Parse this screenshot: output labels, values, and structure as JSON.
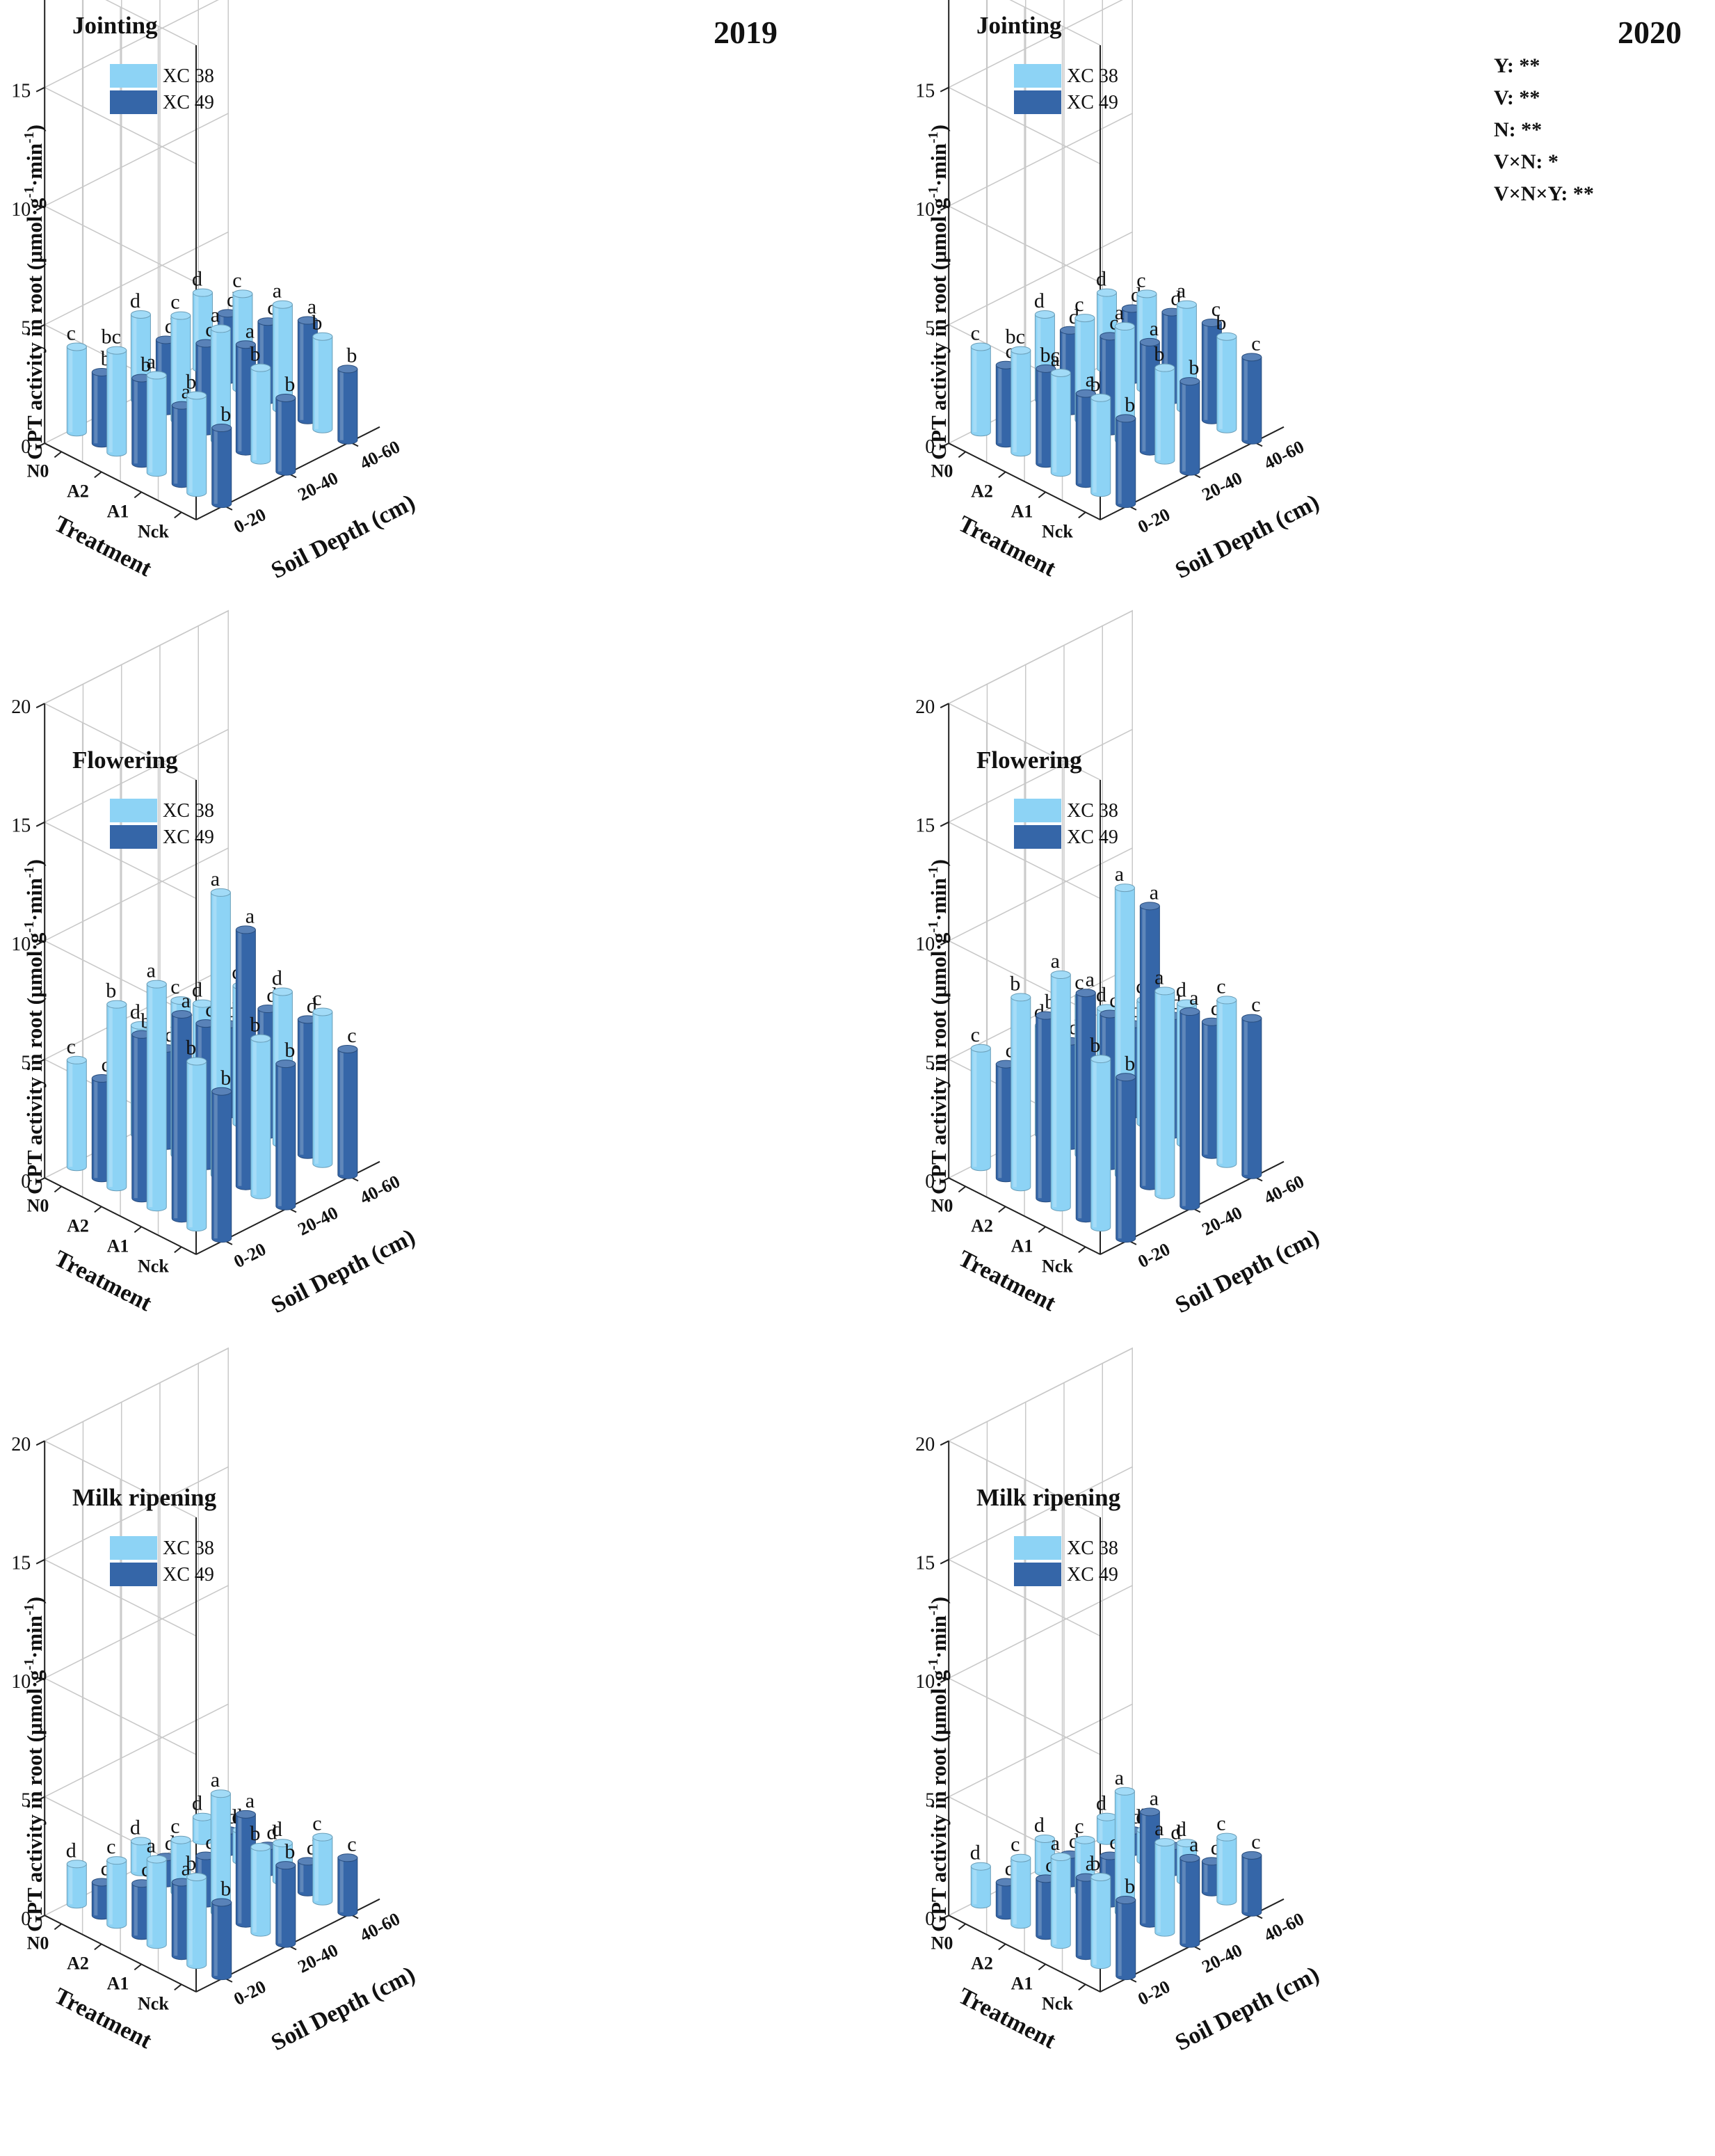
{
  "figure": {
    "ylabel": "GPT activity in root (μmol·g⁻¹·min⁻¹)",
    "ylabel_main": "GPT activity in root (μmol·g",
    "ylabel_sup1": "-1",
    "ylabel_mid": "·min",
    "ylabel_sup2": "-1",
    "ylabel_end": ")",
    "treatment_label": "Treatment",
    "depth_label": "Soil Depth (cm)",
    "treatments": [
      "Nck",
      "A1",
      "A2",
      "N0"
    ],
    "depths": [
      "0-20",
      "20-40",
      "40-60"
    ],
    "yticks": [
      "0",
      "5",
      "10",
      "15",
      "20"
    ],
    "legend": [
      {
        "name": "XC 38",
        "color": "#8dd3f5"
      },
      {
        "name": "XC 49",
        "color": "#3566a8"
      }
    ],
    "stats": [
      "Y: **",
      "V: **",
      "N: **",
      "V×N: *",
      "V×N×Y: **"
    ]
  },
  "chart_data": [
    {
      "type": "bar3d",
      "stage": "Jointing",
      "year": "2019",
      "ylim": [
        0,
        20
      ],
      "series": [
        {
          "name": "XC 38",
          "values": [
            [
              4.1,
              3.9,
              3.9
            ],
            [
              4.1,
              4.7,
              4.4
            ],
            [
              4.3,
              4.4,
              4.0
            ],
            [
              3.6,
              3.6,
              3.2
            ]
          ],
          "letters": [
            [
              "b",
              "b",
              "b"
            ],
            [
              "a",
              "a",
              "a"
            ],
            [
              "bc",
              "c",
              "c"
            ],
            [
              "c",
              "d",
              "d"
            ]
          ]
        },
        {
          "name": "XC 49",
          "values": [
            [
              3.2,
              3.1,
              3.0
            ],
            [
              3.3,
              4.5,
              4.2
            ],
            [
              3.6,
              3.7,
              3.3
            ],
            [
              3.0,
              3.0,
              2.8
            ]
          ],
          "letters": [
            [
              "b",
              "b",
              "b"
            ],
            [
              "a",
              "a",
              "a"
            ],
            [
              "b",
              "c",
              "c"
            ],
            [
              "b",
              "d",
              "d"
            ]
          ]
        }
      ]
    },
    {
      "type": "bar3d",
      "stage": "Jointing",
      "year": "2020",
      "ylim": [
        0,
        20
      ],
      "series": [
        {
          "name": "XC 38",
          "values": [
            [
              4.0,
              3.9,
              3.9
            ],
            [
              4.2,
              4.8,
              4.4
            ],
            [
              4.3,
              4.3,
              4.0
            ],
            [
              3.6,
              3.6,
              3.2
            ]
          ],
          "letters": [
            [
              "b",
              "b",
              "b"
            ],
            [
              "a",
              "a",
              "a"
            ],
            [
              "bc",
              "c",
              "c"
            ],
            [
              "c",
              "d",
              "d"
            ]
          ]
        },
        {
          "name": "XC 49",
          "values": [
            [
              3.6,
              3.8,
              3.5
            ],
            [
              3.8,
              4.6,
              4.1
            ],
            [
              4.0,
              4.0,
              3.7
            ],
            [
              3.3,
              3.4,
              3.0
            ]
          ],
          "letters": [
            [
              "b",
              "b",
              "c"
            ],
            [
              "a",
              "a",
              "c"
            ],
            [
              "bc",
              "c",
              "d"
            ],
            [
              "c",
              "d",
              "d"
            ]
          ]
        }
      ]
    },
    {
      "type": "bar3d",
      "stage": "Flowering",
      "year": "2019",
      "ylim": [
        0,
        20
      ],
      "series": [
        {
          "name": "XC 38",
          "values": [
            [
              7.0,
              6.6,
              6.4
            ],
            [
              9.4,
              11.9,
              6.4
            ],
            [
              7.7,
              6.5,
              5.8
            ],
            [
              4.5,
              4.6,
              4.2
            ]
          ],
          "letters": [
            [
              "b",
              "b",
              "c"
            ],
            [
              "a",
              "a",
              "d"
            ],
            [
              "b",
              "c",
              "d"
            ],
            [
              "c",
              "d",
              "d"
            ]
          ]
        },
        {
          "name": "XC 49",
          "values": [
            [
              6.2,
              6.0,
              5.3
            ],
            [
              8.6,
              10.8,
              5.7
            ],
            [
              6.9,
              6.0,
              5.3
            ],
            [
              4.2,
              4.1,
              3.8
            ]
          ],
          "letters": [
            [
              "b",
              "b",
              "c"
            ],
            [
              "a",
              "a",
              "d"
            ],
            [
              "b",
              "c",
              "d"
            ],
            [
              "c",
              "d",
              "d"
            ]
          ]
        }
      ]
    },
    {
      "type": "bar3d",
      "stage": "Flowering",
      "year": "2020",
      "ylim": [
        0,
        20
      ],
      "series": [
        {
          "name": "XC 38",
          "values": [
            [
              7.1,
              8.6,
              6.9
            ],
            [
              9.8,
              12.1,
              5.9
            ],
            [
              8.0,
              6.7,
              5.2
            ],
            [
              5.0,
              4.6,
              4.0
            ]
          ],
          "letters": [
            [
              "b",
              "a",
              "c"
            ],
            [
              "a",
              "a",
              "d"
            ],
            [
              "b",
              "c",
              "d"
            ],
            [
              "c",
              "d",
              "d"
            ]
          ]
        },
        {
          "name": "XC 49",
          "values": [
            [
              6.8,
              8.2,
              6.6
            ],
            [
              9.5,
              11.8,
              5.6
            ],
            [
              7.7,
              6.4,
              5.0
            ],
            [
              4.8,
              4.4,
              3.8
            ]
          ],
          "letters": [
            [
              "b",
              "a",
              "c"
            ],
            [
              "a",
              "a",
              "d"
            ],
            [
              "b",
              "c",
              "d"
            ],
            [
              "c",
              "d",
              "d"
            ]
          ]
        }
      ]
    },
    {
      "type": "bar3d",
      "stage": "Milk ripening",
      "year": "2019",
      "ylim": [
        0,
        20
      ],
      "series": [
        {
          "name": "XC 38",
          "values": [
            [
              3.7,
              3.6,
              2.7
            ],
            [
              3.6,
              5.0,
              1.6
            ],
            [
              2.7,
              2.2,
              1.3
            ],
            [
              1.7,
              1.3,
              1.0
            ]
          ],
          "letters": [
            [
              "b",
              "b",
              "c"
            ],
            [
              "a",
              "a",
              "d"
            ],
            [
              "c",
              "c",
              "d"
            ],
            [
              "d",
              "d",
              "d"
            ]
          ]
        },
        {
          "name": "XC 49",
          "values": [
            [
              3.1,
              3.3,
              2.3
            ],
            [
              3.1,
              4.6,
              1.3
            ],
            [
              2.2,
              2.0,
              1.1
            ],
            [
              1.4,
              1.1,
              0.9
            ]
          ],
          "letters": [
            [
              "b",
              "b",
              "c"
            ],
            [
              "a",
              "a",
              "d"
            ],
            [
              "c",
              "c",
              "d"
            ],
            [
              "d",
              "d",
              "d"
            ]
          ]
        }
      ]
    },
    {
      "type": "bar3d",
      "stage": "Milk ripening",
      "year": "2020",
      "ylim": [
        0,
        20
      ],
      "series": [
        {
          "name": "XC 38",
          "values": [
            [
              3.7,
              3.8,
              2.7
            ],
            [
              3.7,
              5.1,
              1.6
            ],
            [
              2.8,
              2.2,
              1.3
            ],
            [
              1.6,
              1.4,
              1.0
            ]
          ],
          "letters": [
            [
              "b",
              "a",
              "c"
            ],
            [
              "a",
              "a",
              "d"
            ],
            [
              "c",
              "c",
              "d"
            ],
            [
              "d",
              "d",
              "d"
            ]
          ]
        },
        {
          "name": "XC 49",
          "values": [
            [
              3.2,
              3.6,
              2.4
            ],
            [
              3.3,
              4.7,
              1.3
            ],
            [
              2.4,
              2.0,
              1.1
            ],
            [
              1.4,
              1.2,
              0.9
            ]
          ],
          "letters": [
            [
              "b",
              "a",
              "c"
            ],
            [
              "a",
              "a",
              "d"
            ],
            [
              "c",
              "c",
              "d"
            ],
            [
              "d",
              "d",
              "d"
            ]
          ]
        }
      ]
    }
  ]
}
